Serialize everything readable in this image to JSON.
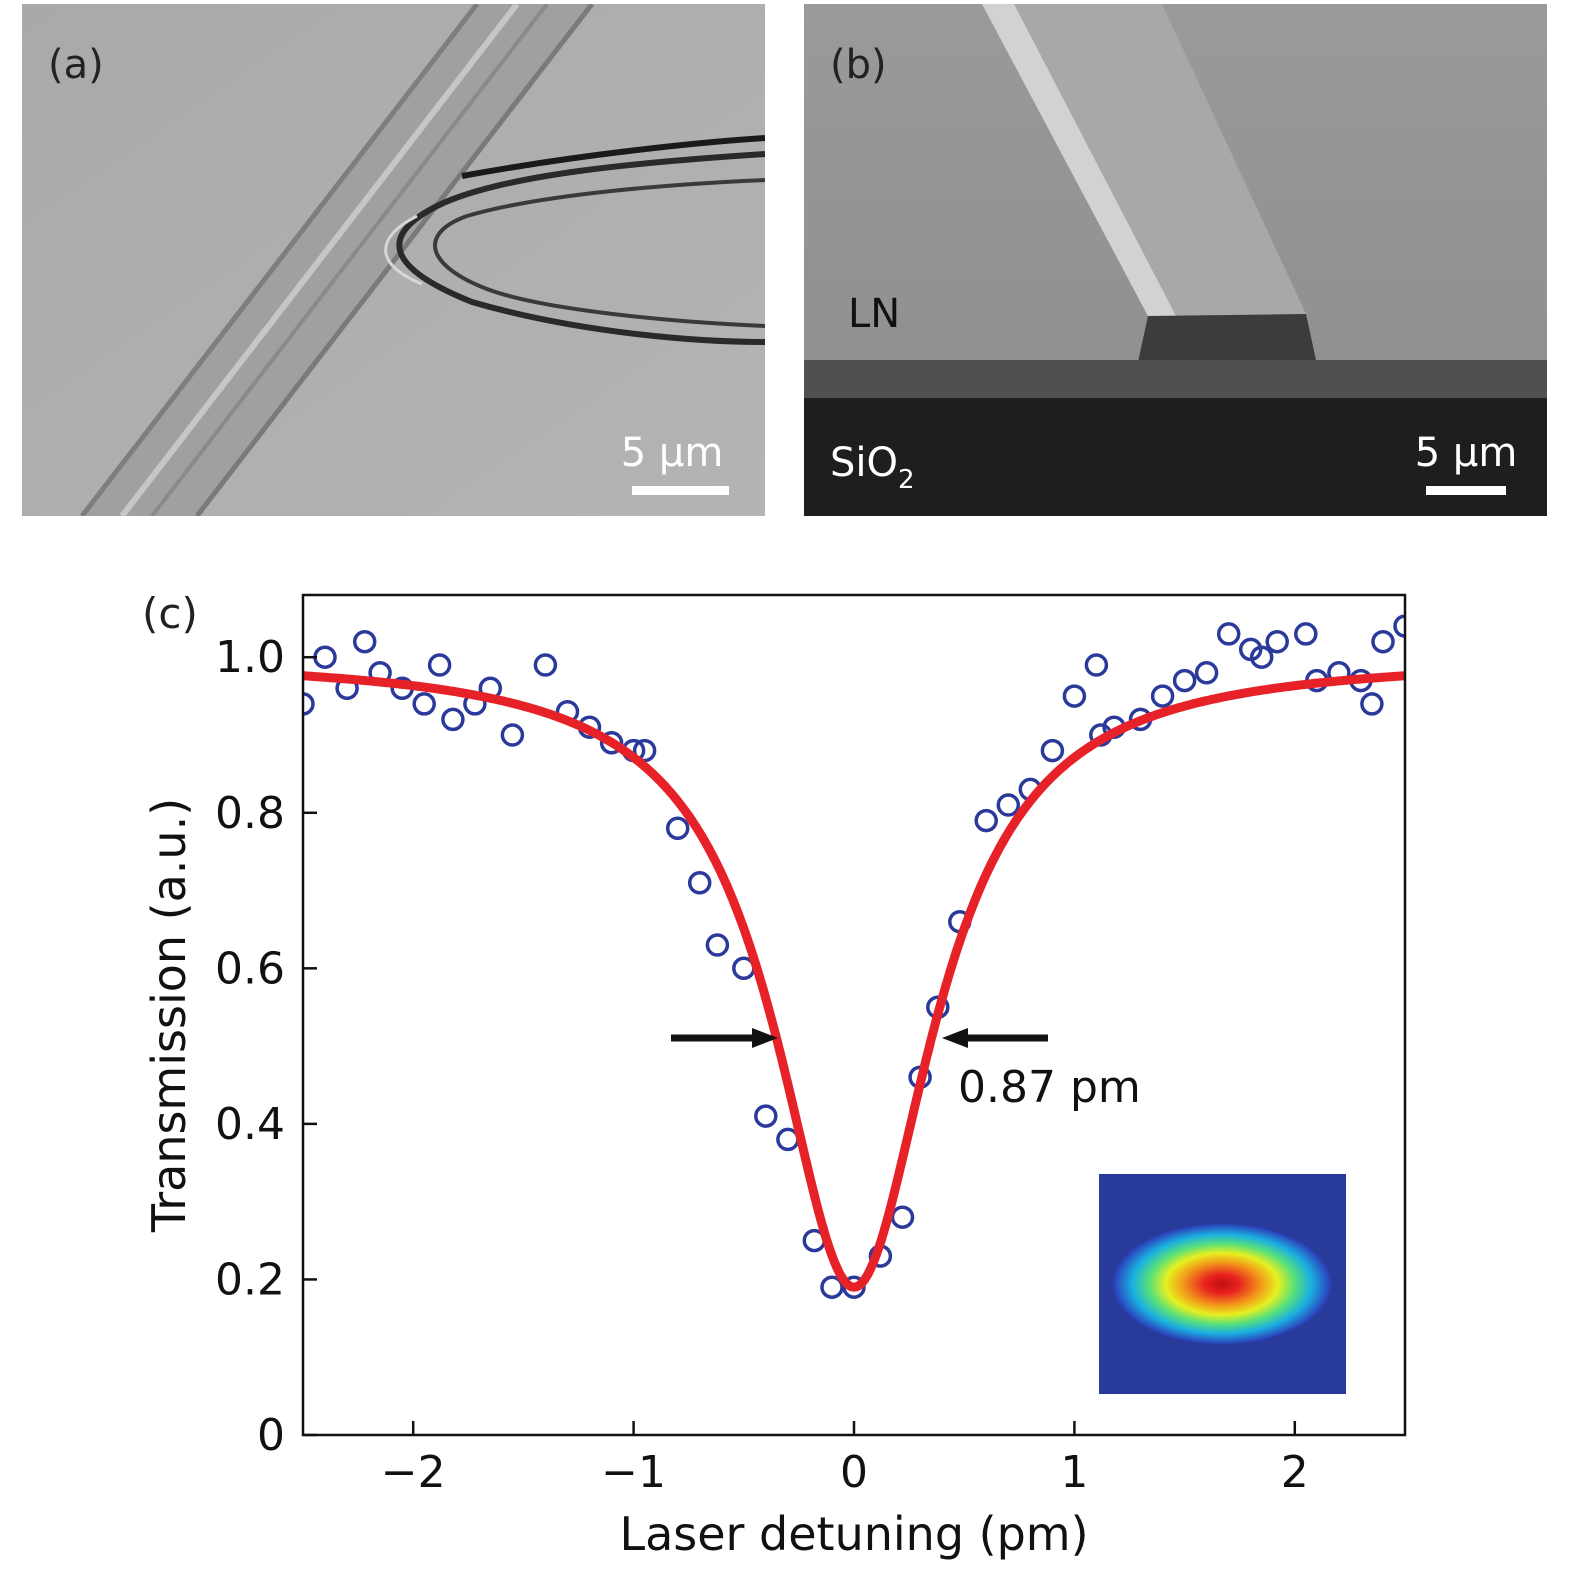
{
  "panels": {
    "a": {
      "label": "(a)",
      "scalebar_label": "5 μm"
    },
    "b": {
      "label": "(b)",
      "material_top": "LN",
      "material_bottom_main": "SiO",
      "material_bottom_sub": "2",
      "scalebar_label": "5 μm"
    },
    "c": {
      "label": "(c)"
    }
  },
  "chart_data": {
    "type": "scatter",
    "title": "",
    "xlabel": "Laser detuning (pm)",
    "ylabel": "Transmission (a.u.)",
    "xlim": [
      -2.5,
      2.5
    ],
    "ylim": [
      0,
      1.08
    ],
    "xticks": [
      -2,
      -1,
      0,
      1,
      2
    ],
    "xtick_labels": [
      "−2",
      "−1",
      "0",
      "1",
      "2"
    ],
    "yticks": [
      0,
      0.2,
      0.4,
      0.6,
      0.8,
      1.0
    ],
    "ytick_labels": [
      "0",
      "0.2",
      "0.4",
      "0.6",
      "0.8",
      "1.0"
    ],
    "grid": false,
    "series": [
      {
        "style": "open-circle markers",
        "color": "#2b3a9a",
        "x": [
          -2.5,
          -2.4,
          -2.3,
          -2.22,
          -2.15,
          -2.05,
          -1.95,
          -1.88,
          -1.82,
          -1.72,
          -1.65,
          -1.55,
          -1.4,
          -1.3,
          -1.2,
          -1.1,
          -1.0,
          -0.95,
          -0.8,
          -0.7,
          -0.62,
          -0.5,
          -0.4,
          -0.3,
          -0.18,
          -0.1,
          0.0,
          0.12,
          0.22,
          0.3,
          0.38,
          0.48,
          0.6,
          0.7,
          0.8,
          0.9,
          1.0,
          1.1,
          1.12,
          1.18,
          1.3,
          1.4,
          1.5,
          1.6,
          1.7,
          1.8,
          1.85,
          1.92,
          2.05,
          2.1,
          2.2,
          2.3,
          2.35,
          2.4,
          2.5
        ],
        "y": [
          0.94,
          1.0,
          0.96,
          1.02,
          0.98,
          0.96,
          0.94,
          0.99,
          0.92,
          0.94,
          0.96,
          0.9,
          0.99,
          0.93,
          0.91,
          0.89,
          0.88,
          0.88,
          0.78,
          0.71,
          0.63,
          0.6,
          0.41,
          0.38,
          0.25,
          0.19,
          0.19,
          0.23,
          0.28,
          0.46,
          0.55,
          0.66,
          0.79,
          0.81,
          0.83,
          0.88,
          0.95,
          0.99,
          0.9,
          0.91,
          0.92,
          0.95,
          0.97,
          0.98,
          1.03,
          1.01,
          1.0,
          1.02,
          1.03,
          0.97,
          0.98,
          0.97,
          0.94,
          1.02,
          1.04
        ]
      },
      {
        "style": "fitted curve (Lorentzian)",
        "color": "#e62228",
        "fit": {
          "center": 0,
          "fwhm": 0.87,
          "min": 0.19,
          "baseline": 1.0
        }
      }
    ],
    "annotations": [
      {
        "text": "0.87 pm",
        "at": [
          0.48,
          0.455
        ]
      }
    ],
    "inset": {
      "description": "mode profile",
      "colormap": "jet"
    }
  }
}
